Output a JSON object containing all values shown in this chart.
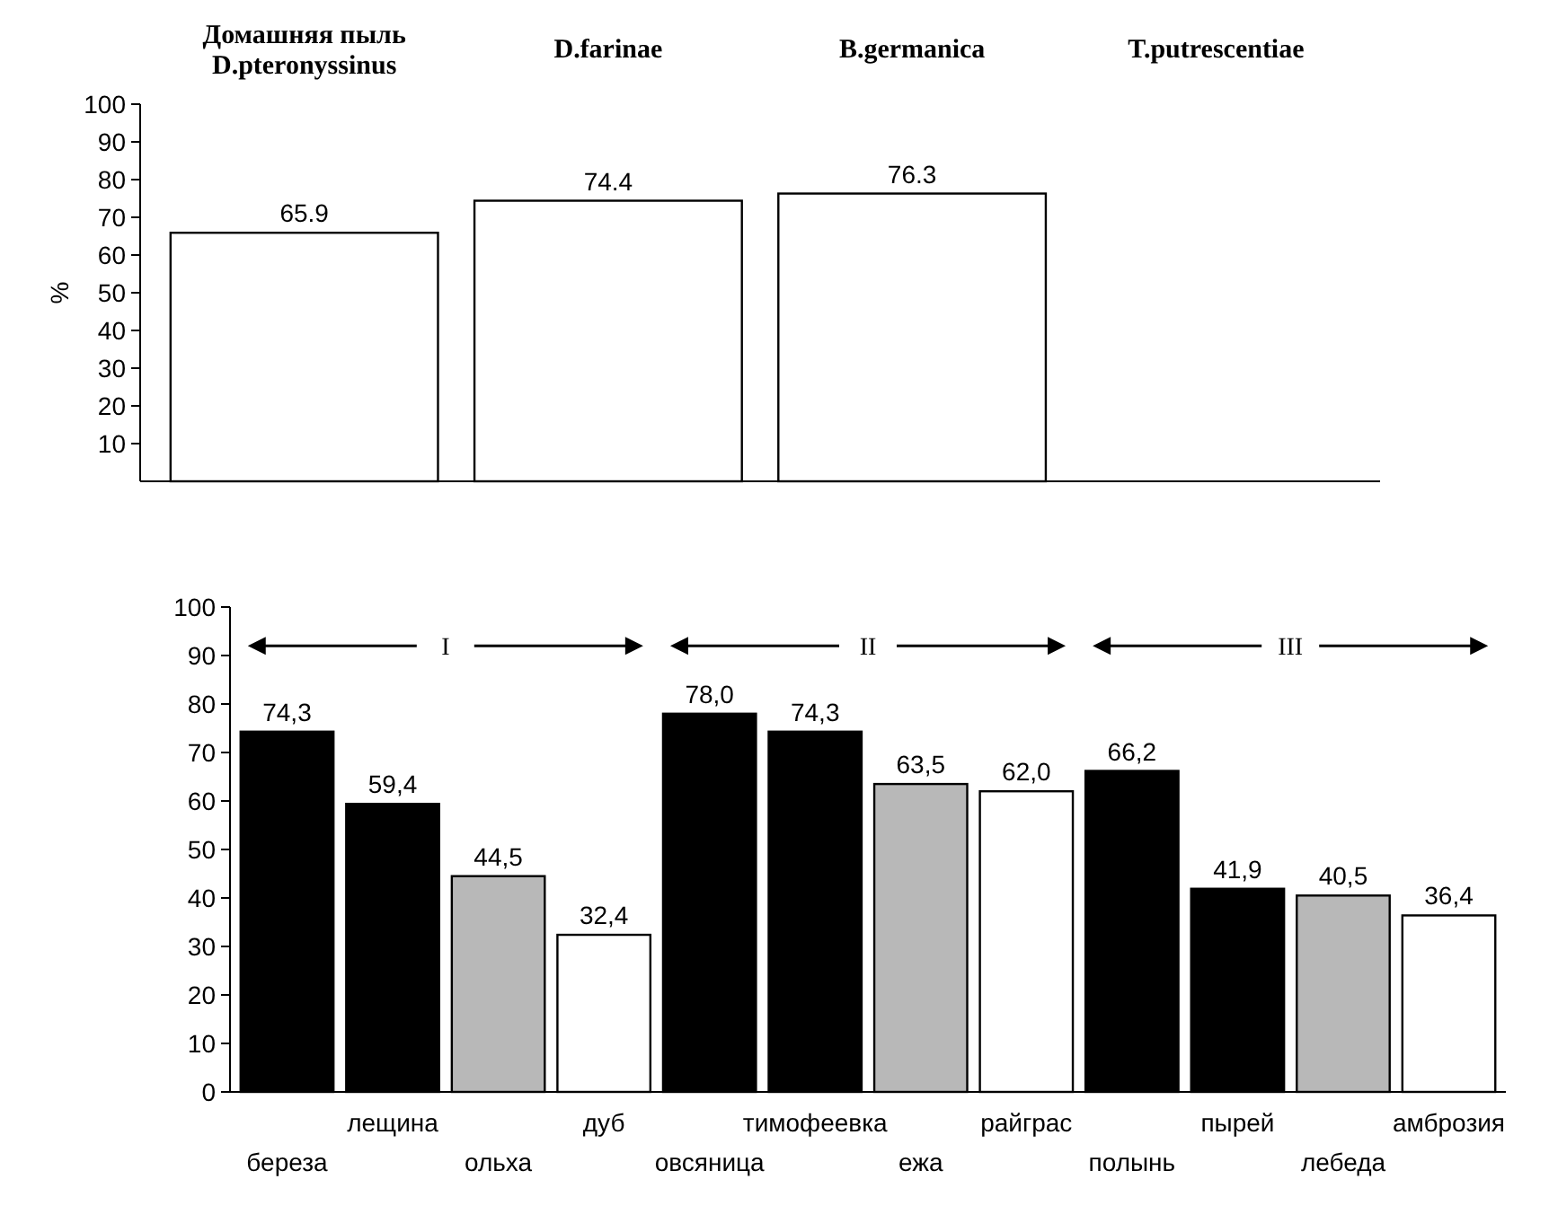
{
  "chart_data": [
    {
      "type": "bar",
      "ylabel": "%",
      "categories": [
        "Домашняя пыль D.pteronyssinus",
        "D.farinae",
        "B.germanica",
        "T.putrescentiae"
      ],
      "values": [
        65.9,
        74.4,
        76.3,
        null
      ],
      "value_labels": [
        "65.9",
        "74.4",
        "76.3",
        null
      ],
      "color": "#ffffff",
      "ylim": [
        0,
        100
      ],
      "yticks": [
        10,
        20,
        30,
        40,
        50,
        60,
        70,
        80,
        90,
        100
      ],
      "grid": false
    },
    {
      "type": "bar",
      "categories": [
        "береза",
        "лещина",
        "ольха",
        "дуб",
        "овсяница",
        "тимофеевка",
        "ежа",
        "райграс",
        "полынь",
        "пырей",
        "лебеда",
        "амброзия"
      ],
      "values": [
        74.3,
        59.4,
        44.5,
        32.4,
        78.0,
        74.3,
        63.5,
        62.0,
        66.2,
        41.9,
        40.5,
        36.4
      ],
      "value_labels": [
        "74,3",
        "59,4",
        "44,5",
        "32,4",
        "78,0",
        "74,3",
        "63,5",
        "62,0",
        "66,2",
        "41,9",
        "40,5",
        "36,4"
      ],
      "colors": [
        "#000000",
        "#000000",
        "#b8b8b8",
        "#ffffff",
        "#000000",
        "#000000",
        "#b8b8b8",
        "#ffffff",
        "#000000",
        "#000000",
        "#b8b8b8",
        "#ffffff"
      ],
      "annotations": [
        "I",
        "II",
        "III"
      ],
      "ylim": [
        0,
        100
      ],
      "yticks": [
        0,
        10,
        20,
        30,
        40,
        50,
        60,
        70,
        80,
        90,
        100
      ],
      "grid": false
    }
  ]
}
